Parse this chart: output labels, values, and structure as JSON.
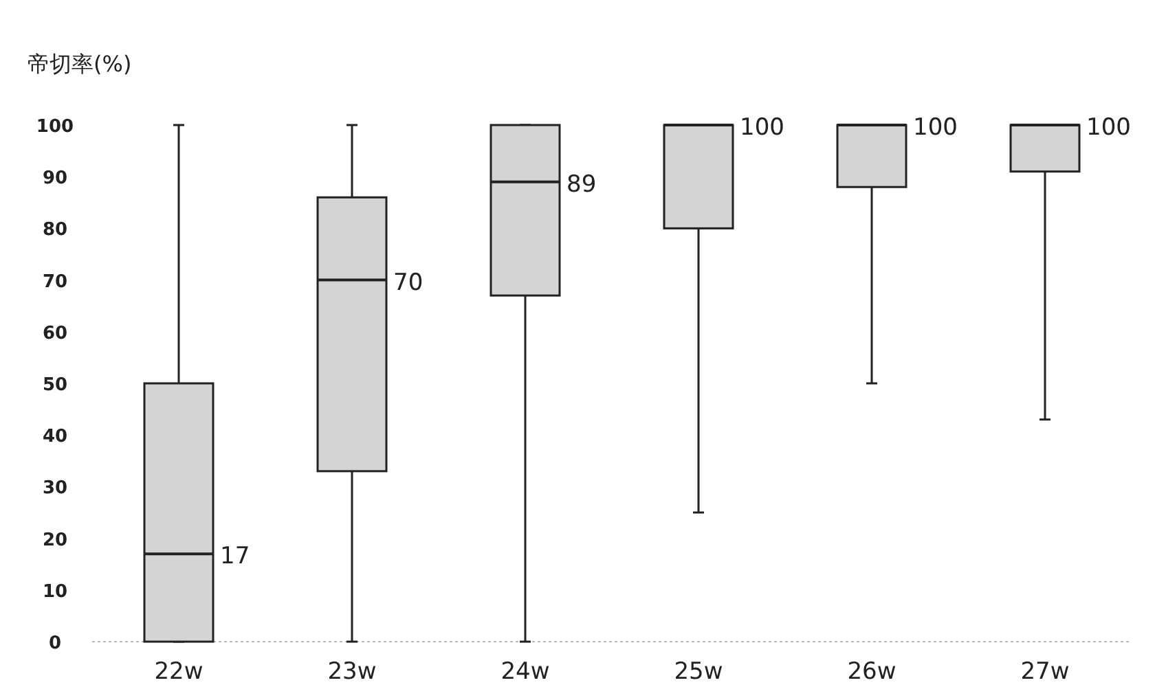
{
  "chart_data": {
    "type": "box",
    "ylabel": "帝切率(%)",
    "categories": [
      "22w",
      "23w",
      "24w",
      "25w",
      "26w",
      "27w"
    ],
    "boxes": [
      {
        "low": 0,
        "q1": 0,
        "median": 17,
        "q3": 50,
        "high": 100
      },
      {
        "low": 0,
        "q1": 33,
        "median": 70,
        "q3": 86,
        "high": 100
      },
      {
        "low": 0,
        "q1": 67,
        "median": 89,
        "q3": 100,
        "high": 100
      },
      {
        "low": 25,
        "q1": 80,
        "median": 100,
        "q3": 100,
        "high": 100
      },
      {
        "low": 50,
        "q1": 88,
        "median": 100,
        "q3": 100,
        "high": 100
      },
      {
        "low": 43,
        "q1": 91,
        "median": 100,
        "q3": 100,
        "high": 100
      }
    ],
    "color": "#d4d4d4",
    "ylim": [
      0,
      100
    ],
    "yticks": [
      0,
      10,
      20,
      30,
      40,
      50,
      60,
      70,
      80,
      90,
      100
    ],
    "annotations": [
      {
        "text": "17",
        "x": "22w",
        "y": 17
      },
      {
        "text": "70",
        "x": "23w",
        "y": 70
      },
      {
        "text": "89",
        "x": "24w",
        "y": 89
      },
      {
        "text": "100",
        "x": "25w",
        "y": 100
      },
      {
        "text": "100",
        "x": "26w",
        "y": 100
      },
      {
        "text": "100",
        "x": "27w",
        "y": 100
      }
    ]
  }
}
